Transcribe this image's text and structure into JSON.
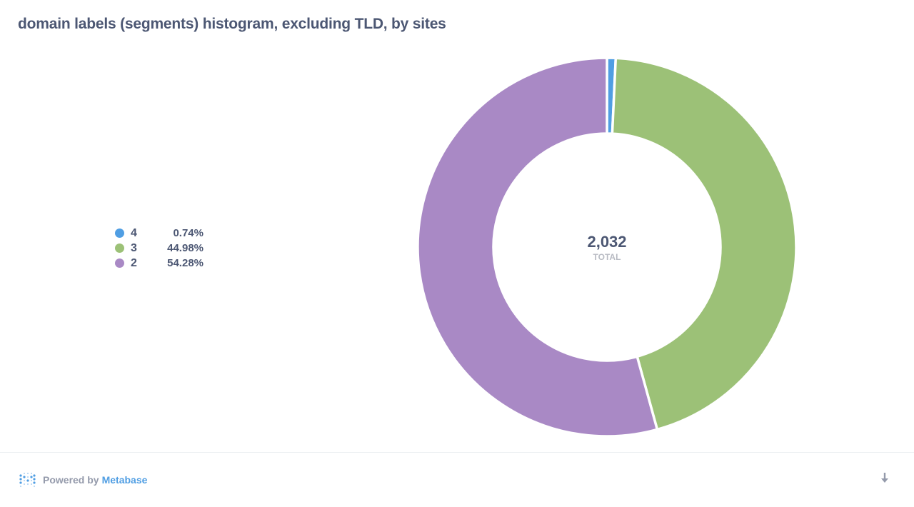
{
  "header": {
    "title": "domain labels (segments) histogram, excluding TLD, by sites"
  },
  "chart_data": {
    "type": "pie",
    "title": "domain labels (segments) histogram, excluding TLD, by sites",
    "center_value": "2,032",
    "center_label": "TOTAL",
    "total": 2032,
    "slices": [
      {
        "label": "4",
        "percent_text": "0.74%",
        "percent": 0.74,
        "color": "#509ee3"
      },
      {
        "label": "3",
        "percent_text": "44.98%",
        "percent": 44.98,
        "color": "#9cc177"
      },
      {
        "label": "2",
        "percent_text": "54.28%",
        "percent": 54.28,
        "color": "#a989c5"
      }
    ],
    "legend_placement": "left"
  },
  "footer": {
    "powered_by": "Powered by",
    "brand": "Metabase",
    "download_icon": "download-icon",
    "brand_color": "#509ee3"
  }
}
